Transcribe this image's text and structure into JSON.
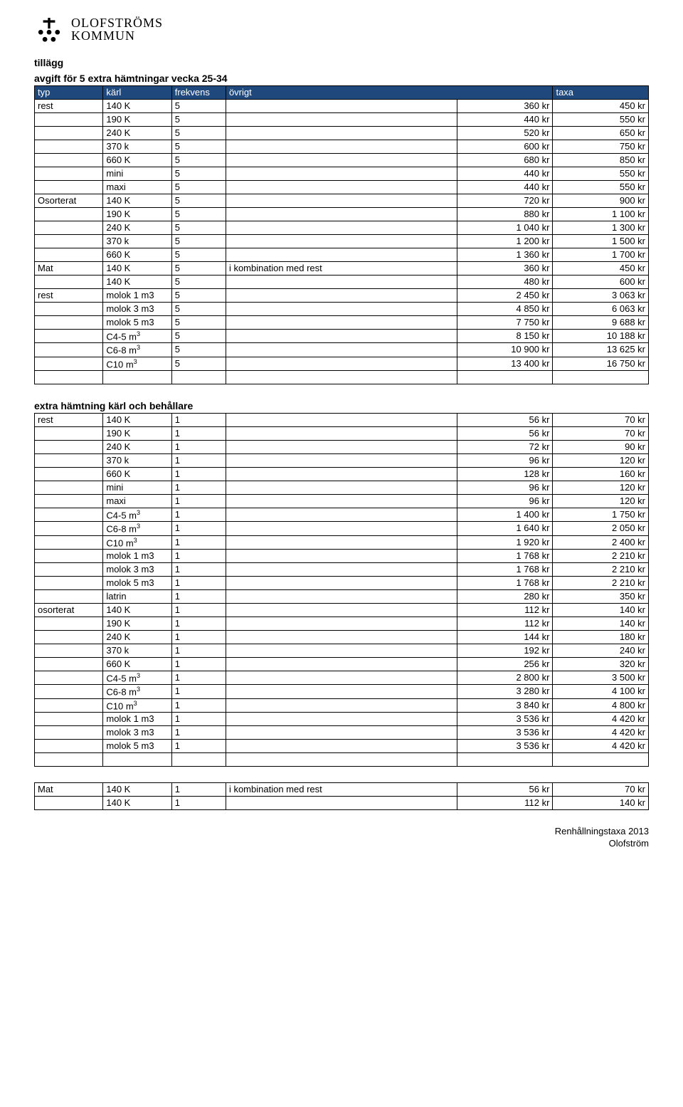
{
  "logo": {
    "line1": "OLOFSTRÖMS",
    "line2": "KOMMUN"
  },
  "heading1a": "tillägg",
  "heading1b": "avgift för 5 extra hämtningar vecka 25-34",
  "columns": {
    "typ": "typ",
    "karl": "kärl",
    "frekvens": "frekvens",
    "ovrigt": "övrigt",
    "taxa": "taxa"
  },
  "table1_groups": [
    {
      "typ": "rest",
      "rows": [
        {
          "karl": "140 K",
          "frek": "5",
          "ovr": "",
          "pris": "360 kr",
          "taxa": "450 kr"
        },
        {
          "karl": "190 K",
          "frek": "5",
          "ovr": "",
          "pris": "440 kr",
          "taxa": "550 kr"
        },
        {
          "karl": "240 K",
          "frek": "5",
          "ovr": "",
          "pris": "520 kr",
          "taxa": "650 kr"
        },
        {
          "karl": "370 k",
          "frek": "5",
          "ovr": "",
          "pris": "600 kr",
          "taxa": "750 kr"
        },
        {
          "karl": "660 K",
          "frek": "5",
          "ovr": "",
          "pris": "680 kr",
          "taxa": "850 kr"
        },
        {
          "karl": "mini",
          "frek": "5",
          "ovr": "",
          "pris": "440 kr",
          "taxa": "550 kr"
        },
        {
          "karl": "maxi",
          "frek": "5",
          "ovr": "",
          "pris": "440 kr",
          "taxa": "550 kr"
        }
      ]
    },
    {
      "typ": "Osorterat",
      "rows": [
        {
          "karl": "140 K",
          "frek": "5",
          "ovr": "",
          "pris": "720 kr",
          "taxa": "900 kr"
        },
        {
          "karl": "190 K",
          "frek": "5",
          "ovr": "",
          "pris": "880 kr",
          "taxa": "1 100 kr"
        },
        {
          "karl": "240 K",
          "frek": "5",
          "ovr": "",
          "pris": "1 040 kr",
          "taxa": "1 300 kr"
        },
        {
          "karl": "370 k",
          "frek": "5",
          "ovr": "",
          "pris": "1 200 kr",
          "taxa": "1 500 kr"
        },
        {
          "karl": "660 K",
          "frek": "5",
          "ovr": "",
          "pris": "1 360 kr",
          "taxa": "1 700 kr"
        }
      ]
    },
    {
      "typ": "Mat",
      "rows": [
        {
          "karl": "140 K",
          "frek": "5",
          "ovr": "i kombination med rest",
          "pris": "360 kr",
          "taxa": "450 kr"
        },
        {
          "karl": "140 K",
          "frek": "5",
          "ovr": "",
          "pris": "480 kr",
          "taxa": "600 kr"
        }
      ]
    },
    {
      "typ": "rest",
      "rows": [
        {
          "karl": "molok 1 m3",
          "frek": "5",
          "ovr": "",
          "pris": "2 450 kr",
          "taxa": "3 063 kr"
        },
        {
          "karl": "molok 3 m3",
          "frek": "5",
          "ovr": "",
          "pris": "4 850 kr",
          "taxa": "6 063 kr"
        },
        {
          "karl": "molok 5 m3",
          "frek": "5",
          "ovr": "",
          "pris": "7 750 kr",
          "taxa": "9 688 kr"
        },
        {
          "karl": "C4-5 m³",
          "frek": "5",
          "ovr": "",
          "pris": "8 150 kr",
          "taxa": "10 188 kr",
          "sup": true
        },
        {
          "karl": "C6-8 m³",
          "frek": "5",
          "ovr": "",
          "pris": "10 900 kr",
          "taxa": "13 625 kr",
          "sup": true
        },
        {
          "karl": "C10 m³",
          "frek": "5",
          "ovr": "",
          "pris": "13 400 kr",
          "taxa": "16 750 kr",
          "sup": true
        }
      ],
      "trailing_blank": true
    }
  ],
  "heading2": "extra hämtning kärl och behållare",
  "table2_groups": [
    {
      "typ": "rest",
      "rows": [
        {
          "karl": "140 K",
          "frek": "1",
          "ovr": "",
          "pris": "56 kr",
          "taxa": "70 kr"
        },
        {
          "karl": "190 K",
          "frek": "1",
          "ovr": "",
          "pris": "56 kr",
          "taxa": "70 kr"
        },
        {
          "karl": "240 K",
          "frek": "1",
          "ovr": "",
          "pris": "72 kr",
          "taxa": "90 kr"
        },
        {
          "karl": "370 k",
          "frek": "1",
          "ovr": "",
          "pris": "96 kr",
          "taxa": "120 kr"
        },
        {
          "karl": "660 K",
          "frek": "1",
          "ovr": "",
          "pris": "128 kr",
          "taxa": "160 kr"
        },
        {
          "karl": "mini",
          "frek": "1",
          "ovr": "",
          "pris": "96 kr",
          "taxa": "120 kr"
        },
        {
          "karl": "maxi",
          "frek": "1",
          "ovr": "",
          "pris": "96 kr",
          "taxa": "120 kr"
        },
        {
          "karl": "C4-5 m³",
          "frek": "1",
          "ovr": "",
          "pris": "1 400 kr",
          "taxa": "1 750 kr",
          "sup": true
        },
        {
          "karl": "C6-8 m³",
          "frek": "1",
          "ovr": "",
          "pris": "1 640 kr",
          "taxa": "2 050 kr",
          "sup": true
        },
        {
          "karl": "C10 m³",
          "frek": "1",
          "ovr": "",
          "pris": "1 920 kr",
          "taxa": "2 400 kr",
          "sup": true
        },
        {
          "karl": "molok 1 m3",
          "frek": "1",
          "ovr": "",
          "pris": "1 768 kr",
          "taxa": "2 210 kr"
        },
        {
          "karl": "molok 3 m3",
          "frek": "1",
          "ovr": "",
          "pris": "1 768 kr",
          "taxa": "2 210 kr"
        },
        {
          "karl": "molok 5 m3",
          "frek": "1",
          "ovr": "",
          "pris": "1 768 kr",
          "taxa": "2 210 kr"
        },
        {
          "karl": "latrin",
          "frek": "1",
          "ovr": "",
          "pris": "280 kr",
          "taxa": "350 kr"
        }
      ]
    },
    {
      "typ": "osorterat",
      "rows": [
        {
          "karl": "140 K",
          "frek": "1",
          "ovr": "",
          "pris": "112 kr",
          "taxa": "140 kr"
        },
        {
          "karl": "190 K",
          "frek": "1",
          "ovr": "",
          "pris": "112 kr",
          "taxa": "140 kr"
        },
        {
          "karl": "240 K",
          "frek": "1",
          "ovr": "",
          "pris": "144 kr",
          "taxa": "180 kr"
        },
        {
          "karl": "370 k",
          "frek": "1",
          "ovr": "",
          "pris": "192 kr",
          "taxa": "240 kr"
        },
        {
          "karl": "660 K",
          "frek": "1",
          "ovr": "",
          "pris": "256 kr",
          "taxa": "320 kr"
        },
        {
          "karl": "C4-5 m³",
          "frek": "1",
          "ovr": "",
          "pris": "2 800 kr",
          "taxa": "3 500 kr",
          "sup": true
        },
        {
          "karl": "C6-8 m³",
          "frek": "1",
          "ovr": "",
          "pris": "3 280 kr",
          "taxa": "4 100 kr",
          "sup": true
        },
        {
          "karl": "C10 m³",
          "frek": "1",
          "ovr": "",
          "pris": "3 840 kr",
          "taxa": "4 800 kr",
          "sup": true
        },
        {
          "karl": "molok 1 m3",
          "frek": "1",
          "ovr": "",
          "pris": "3 536 kr",
          "taxa": "4 420 kr"
        },
        {
          "karl": "molok 3 m3",
          "frek": "1",
          "ovr": "",
          "pris": "3 536 kr",
          "taxa": "4 420 kr"
        },
        {
          "karl": "molok 5 m3",
          "frek": "1",
          "ovr": "",
          "pris": "3 536 kr",
          "taxa": "4 420 kr"
        }
      ],
      "trailing_blank": true
    }
  ],
  "table3_groups": [
    {
      "typ": "Mat",
      "rows": [
        {
          "karl": "140 K",
          "frek": "1",
          "ovr": "i kombination med rest",
          "pris": "56 kr",
          "taxa": "70 kr"
        },
        {
          "karl": "140 K",
          "frek": "1",
          "ovr": "",
          "pris": "112 kr",
          "taxa": "140 kr"
        }
      ]
    }
  ],
  "footer": {
    "line1": "Renhållningstaxa 2013",
    "line2": "Olofström"
  },
  "colors": {
    "header_bg": "#1f497d",
    "header_fg": "#ffffff",
    "border": "#000000",
    "text": "#000000",
    "background": "#ffffff"
  }
}
